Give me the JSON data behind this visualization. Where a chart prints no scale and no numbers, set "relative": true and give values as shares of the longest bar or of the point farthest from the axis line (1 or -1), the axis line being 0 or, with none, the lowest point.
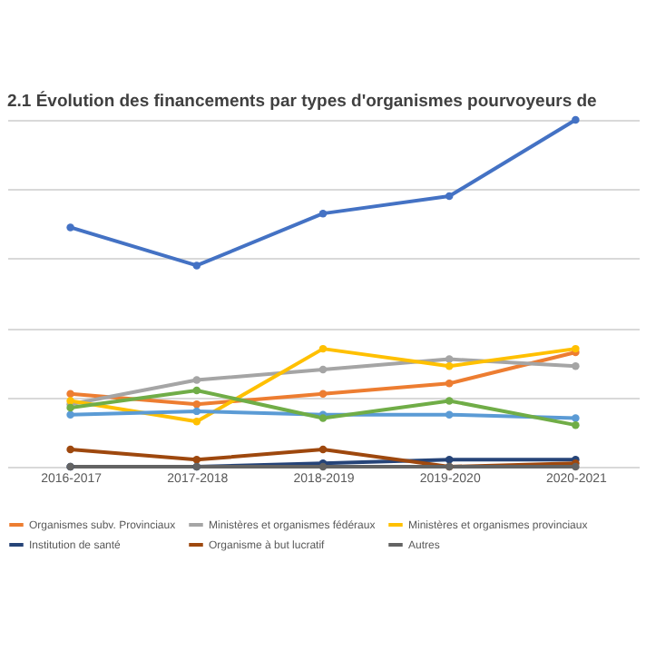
{
  "chart_data": {
    "type": "line",
    "title": "2.1 Évolution des financements par types d'organismes pourvoyeurs de",
    "categories": [
      "2016-2017",
      "2017-2018",
      "2018-2019",
      "2019-2020",
      "2020-2021"
    ],
    "relative": true,
    "grid": "y",
    "legend": "bottom",
    "marker": "circle",
    "line_style": "solid",
    "series": [
      {
        "color": "#4472c4",
        "values": [
          0.69,
          0.58,
          0.73,
          0.78,
          1.0
        ]
      },
      {
        "name": "Organismes subv. Provinciaux",
        "color": "#ed7d31",
        "values": [
          0.21,
          0.18,
          0.21,
          0.24,
          0.33
        ]
      },
      {
        "name": "Ministères et organismes fédéraux",
        "color": "#a5a5a5",
        "values": [
          0.18,
          0.25,
          0.28,
          0.31,
          0.29
        ]
      },
      {
        "name": "Ministères et organismes provinciaux",
        "color": "#ffc000",
        "values": [
          0.19,
          0.13,
          0.34,
          0.29,
          0.34
        ]
      },
      {
        "color": "#5b9bd5",
        "values": [
          0.15,
          0.16,
          0.15,
          0.15,
          0.14
        ]
      },
      {
        "color": "#70ad47",
        "values": [
          0.17,
          0.22,
          0.14,
          0.19,
          0.12
        ]
      },
      {
        "name": "Institution de santé",
        "color": "#264478",
        "values": [
          0.0,
          0.0,
          0.01,
          0.02,
          0.02
        ]
      },
      {
        "name": "Organisme à but lucratif",
        "color": "#9e480e",
        "values": [
          0.05,
          0.02,
          0.05,
          0.0,
          0.01
        ]
      },
      {
        "name": "Autres",
        "color": "#636363",
        "values": [
          0.0,
          0.0,
          0.0,
          0.0,
          0.0
        ]
      }
    ]
  }
}
